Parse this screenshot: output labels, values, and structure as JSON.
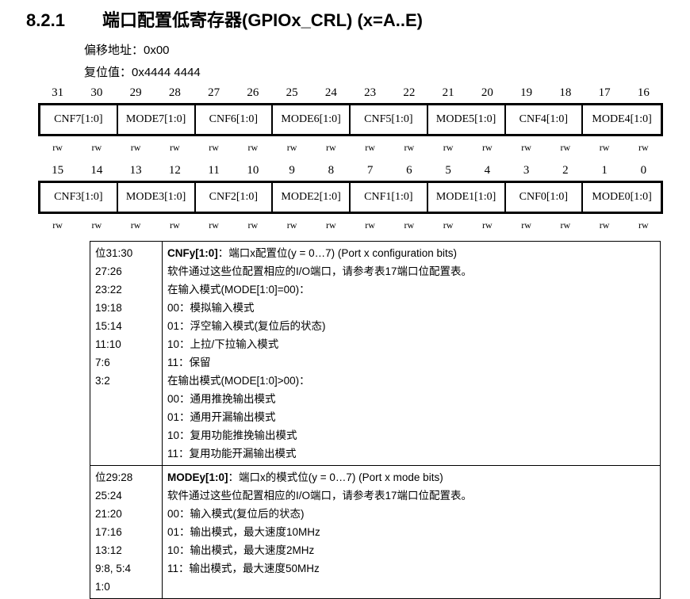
{
  "heading": {
    "number": "8.2.1",
    "title": "端口配置低寄存器(GPIOx_CRL) (x=A..E)"
  },
  "offset": "偏移地址：0x00",
  "reset": "复位值：0x4444 4444",
  "register": {
    "upper_bits": [
      "31",
      "30",
      "29",
      "28",
      "27",
      "26",
      "25",
      "24",
      "23",
      "22",
      "21",
      "20",
      "19",
      "18",
      "17",
      "16"
    ],
    "upper_fields": [
      "CNF7[1:0]",
      "MODE7[1:0]",
      "CNF6[1:0]",
      "MODE6[1:0]",
      "CNF5[1:0]",
      "MODE5[1:0]",
      "CNF4[1:0]",
      "MODE4[1:0]"
    ],
    "lower_bits": [
      "15",
      "14",
      "13",
      "12",
      "11",
      "10",
      "9",
      "8",
      "7",
      "6",
      "5",
      "4",
      "3",
      "2",
      "1",
      "0"
    ],
    "lower_fields": [
      "CNF3[1:0]",
      "MODE3[1:0]",
      "CNF2[1:0]",
      "MODE2[1:0]",
      "CNF1[1:0]",
      "MODE1[1:0]",
      "CNF0[1:0]",
      "MODE0[1:0]"
    ],
    "access": "rw"
  },
  "descriptions": [
    {
      "bits": [
        "位31:30",
        "27:26",
        "23:22",
        "19:18",
        "15:14",
        "11:10",
        "7:6",
        "3:2"
      ],
      "name": "CNFy[1:0]",
      "summary": "：端口x配置位(y = 0…7) (Port x configuration bits)",
      "lines": [
        "软件通过这些位配置相应的I/O端口，请参考表17端口位配置表。",
        "在输入模式(MODE[1:0]=00)：",
        "00：模拟输入模式",
        "01：浮空输入模式(复位后的状态)",
        "10：上拉/下拉输入模式",
        "11：保留",
        "在输出模式(MODE[1:0]>00)：",
        "00：通用推挽输出模式",
        "01：通用开漏输出模式",
        "10：复用功能推挽输出模式",
        "11：复用功能开漏输出模式"
      ]
    },
    {
      "bits": [
        "位29:28",
        "25:24",
        "21:20",
        "17:16",
        "13:12",
        "9:8, 5:4",
        "1:0"
      ],
      "name": "MODEy[1:0]",
      "summary": "：端口x的模式位(y = 0…7) (Port x mode bits)",
      "lines": [
        "软件通过这些位配置相应的I/O端口，请参考表17端口位配置表。",
        "00：输入模式(复位后的状态)",
        "01：输出模式，最大速度10MHz",
        "10：输出模式，最大速度2MHz",
        "11：输出模式，最大速度50MHz"
      ]
    }
  ]
}
